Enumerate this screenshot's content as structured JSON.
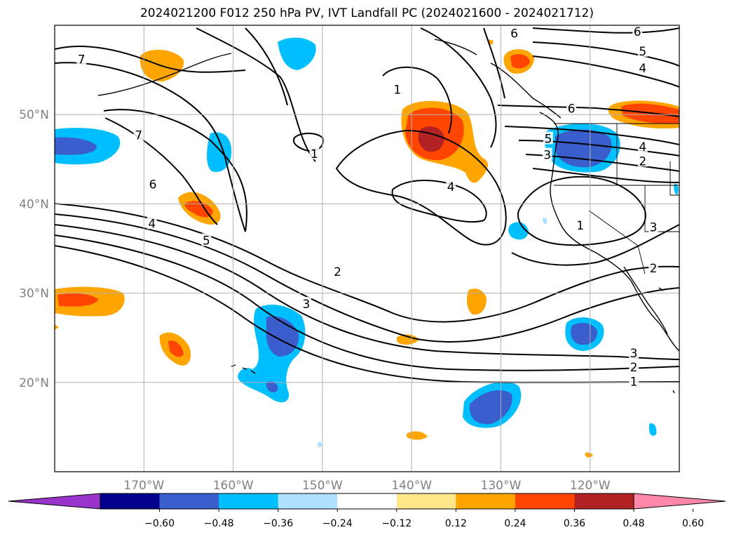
{
  "title": "2024021200 F012 250 hPa PV, IVT Landfall PC (2024021600 - 2024021712)",
  "map": {
    "lon_range": [
      -180,
      -110
    ],
    "lat_range": [
      10,
      60
    ],
    "lat_ticks": [
      {
        "value": 20,
        "label": "20°N"
      },
      {
        "value": 30,
        "label": "30°N"
      },
      {
        "value": 40,
        "label": "40°N"
      },
      {
        "value": 50,
        "label": "50°N"
      }
    ],
    "lon_ticks": [
      {
        "value": -170,
        "label": "170°W"
      },
      {
        "value": -160,
        "label": "160°W"
      },
      {
        "value": -150,
        "label": "150°W"
      },
      {
        "value": -140,
        "label": "140°W"
      },
      {
        "value": -130,
        "label": "130°W"
      },
      {
        "value": -120,
        "label": "120°W"
      }
    ],
    "gridlines": true,
    "pv_contour_labels": [
      {
        "text": "7",
        "lon": -177,
        "lat": 56.2
      },
      {
        "text": "7",
        "lon": -170.6,
        "lat": 47.7
      },
      {
        "text": "6",
        "lon": -169,
        "lat": 42.2
      },
      {
        "text": "5",
        "lon": -163,
        "lat": 35.9
      },
      {
        "text": "4",
        "lon": -169.1,
        "lat": 37.8
      },
      {
        "text": "1",
        "lon": -150.9,
        "lat": 45.6
      },
      {
        "text": "1",
        "lon": -141.6,
        "lat": 52.8
      },
      {
        "text": "4",
        "lon": -135.6,
        "lat": 41.9
      },
      {
        "text": "2",
        "lon": -148.3,
        "lat": 32.4
      },
      {
        "text": "3",
        "lon": -151.8,
        "lat": 28.8
      },
      {
        "text": "6",
        "lon": -128.5,
        "lat": 59.1
      },
      {
        "text": "6",
        "lon": -114.7,
        "lat": 59.3
      },
      {
        "text": "5",
        "lon": -114.1,
        "lat": 57.1
      },
      {
        "text": "4",
        "lon": -114.1,
        "lat": 55.2
      },
      {
        "text": "6",
        "lon": -122.1,
        "lat": 50.7
      },
      {
        "text": "5",
        "lon": -124.7,
        "lat": 47.3
      },
      {
        "text": "3",
        "lon": -124.8,
        "lat": 45.5
      },
      {
        "text": "4",
        "lon": -114.1,
        "lat": 46.4
      },
      {
        "text": "2",
        "lon": -114.1,
        "lat": 44.8
      },
      {
        "text": "1",
        "lon": -121.1,
        "lat": 37.6
      },
      {
        "text": "3",
        "lon": -112.9,
        "lat": 37.4
      },
      {
        "text": "2",
        "lon": -112.9,
        "lat": 32.8
      },
      {
        "text": "3",
        "lon": -115.1,
        "lat": 23.3
      },
      {
        "text": "2",
        "lon": -115.1,
        "lat": 21.7
      },
      {
        "text": "1",
        "lon": -115.1,
        "lat": 20.1
      }
    ]
  },
  "colorbar": {
    "ticks": [
      "−0.60",
      "−0.48",
      "−0.36",
      "−0.24",
      "−0.12",
      "0.12",
      "0.24",
      "0.36",
      "0.48",
      "0.60"
    ],
    "colors": [
      "#9933cc",
      "#00008b",
      "#3a5fcd",
      "#00bfff",
      "#b0e2ff",
      "#ffffff",
      "#ffe88a",
      "#ffa500",
      "#ff4500",
      "#b22222",
      "#ff88aa"
    ]
  }
}
